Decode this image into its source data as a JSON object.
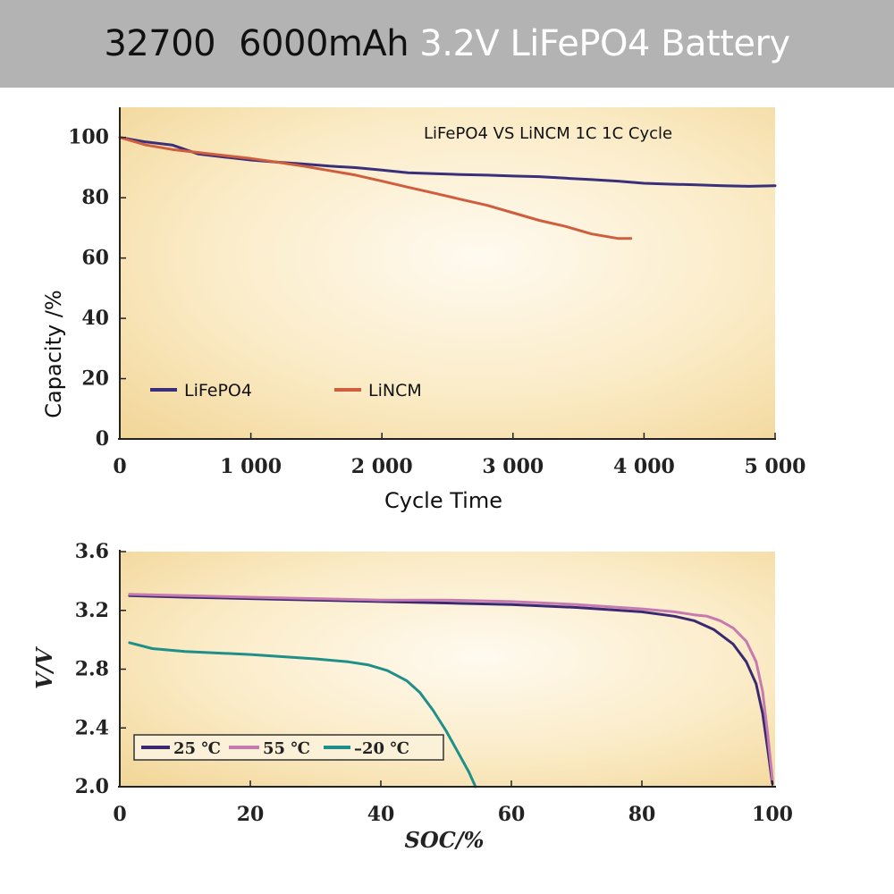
{
  "header": {
    "title_part1": "32700",
    "title_part2": "6000mAh",
    "title_part3": "3.2V LiFePO4 Battery"
  },
  "colors": {
    "banner_bg": "#b3b3b3",
    "plot_bg": "#f6dfa8",
    "plot_center": "#fffaf0",
    "lifepo4": "#3a2f7a",
    "lincm": "#cf5e3e",
    "t25": "#3b2a72",
    "t55": "#c77ab0",
    "tm20": "#1f8f8a"
  },
  "chart_data": [
    {
      "type": "line",
      "title": "",
      "annotation": "LiFePO4 VS LiNCM 1C 1C Cycle",
      "xlabel": "Cycle Time",
      "ylabel": "Capacity /%",
      "xlim": [
        0,
        5000
      ],
      "ylim": [
        0,
        110
      ],
      "xticks": [
        0,
        1000,
        2000,
        3000,
        4000,
        5000
      ],
      "xtick_labels": [
        "0",
        "1 000",
        "2 000",
        "3 000",
        "4 000",
        "5 000"
      ],
      "yticks": [
        0,
        20,
        40,
        60,
        80,
        100
      ],
      "ytick_labels": [
        "0",
        "20",
        "40",
        "60",
        "80",
        "100"
      ],
      "grid": false,
      "legend": "lower-left",
      "series": [
        {
          "name": "LiFePO4",
          "color": "#3a2f7a",
          "x": [
            0,
            200,
            400,
            600,
            800,
            1000,
            1200,
            1400,
            1600,
            1800,
            2000,
            2200,
            2400,
            2600,
            2800,
            3000,
            3200,
            3400,
            3600,
            3800,
            4000,
            4200,
            4400,
            4600,
            4800,
            5000
          ],
          "y": [
            100,
            98.5,
            97.5,
            94.5,
            93.5,
            92.5,
            91.8,
            91.2,
            90.5,
            90,
            89.2,
            88.3,
            88,
            87.7,
            87.5,
            87.2,
            87,
            86.5,
            86,
            85.5,
            84.8,
            84.5,
            84.3,
            84,
            83.8,
            84
          ]
        },
        {
          "name": "LiNCM",
          "color": "#cf5e3e",
          "x": [
            0,
            200,
            400,
            600,
            800,
            1000,
            1200,
            1400,
            1600,
            1800,
            2000,
            2200,
            2400,
            2600,
            2800,
            3000,
            3200,
            3400,
            3600,
            3800,
            3900
          ],
          "y": [
            100,
            97.5,
            96,
            95,
            94,
            93,
            91.8,
            90.5,
            89,
            87.5,
            85.5,
            83.5,
            81.5,
            79.5,
            77.5,
            75,
            72.5,
            70.5,
            68,
            66.5,
            66.5
          ]
        }
      ]
    },
    {
      "type": "line",
      "title": "",
      "xlabel": "SOC/%",
      "ylabel": "V/V",
      "xlim": [
        0,
        100
      ],
      "ylim": [
        2.0,
        3.6
      ],
      "xticks": [
        0,
        20,
        40,
        60,
        80,
        100
      ],
      "xtick_labels": [
        "0",
        "20",
        "40",
        "60",
        "80",
        "100"
      ],
      "yticks": [
        2.0,
        2.4,
        2.8,
        3.2,
        3.6
      ],
      "ytick_labels": [
        "2.0",
        "2.4",
        "2.8",
        "3.2",
        "3.6"
      ],
      "grid": false,
      "legend": "lower-left",
      "series": [
        {
          "name": "25 ℃",
          "color": "#3b2a72",
          "x": [
            1.5,
            10,
            20,
            30,
            40,
            50,
            60,
            70,
            80,
            85,
            88,
            91,
            94,
            96,
            97.5,
            98.5,
            99.3,
            100
          ],
          "y": [
            3.3,
            3.29,
            3.28,
            3.27,
            3.26,
            3.25,
            3.24,
            3.22,
            3.19,
            3.16,
            3.13,
            3.07,
            2.97,
            2.85,
            2.7,
            2.5,
            2.25,
            2.02
          ]
        },
        {
          "name": "55 ℃",
          "color": "#c77ab0",
          "x": [
            1.5,
            10,
            20,
            30,
            40,
            50,
            60,
            70,
            80,
            85,
            88,
            90,
            92,
            94,
            96,
            97.5,
            98.5,
            99.3,
            100
          ],
          "y": [
            3.31,
            3.3,
            3.29,
            3.28,
            3.27,
            3.27,
            3.26,
            3.24,
            3.21,
            3.19,
            3.17,
            3.16,
            3.13,
            3.08,
            2.99,
            2.85,
            2.65,
            2.35,
            2.05
          ]
        },
        {
          "name": "–20 ℃",
          "color": "#1f8f8a",
          "x": [
            1.5,
            5,
            10,
            20,
            30,
            35,
            38,
            41,
            44,
            46,
            48,
            50,
            52,
            53.5,
            54.5
          ],
          "y": [
            2.98,
            2.94,
            2.92,
            2.9,
            2.87,
            2.85,
            2.83,
            2.79,
            2.72,
            2.64,
            2.52,
            2.38,
            2.22,
            2.1,
            2.0
          ]
        }
      ]
    }
  ]
}
